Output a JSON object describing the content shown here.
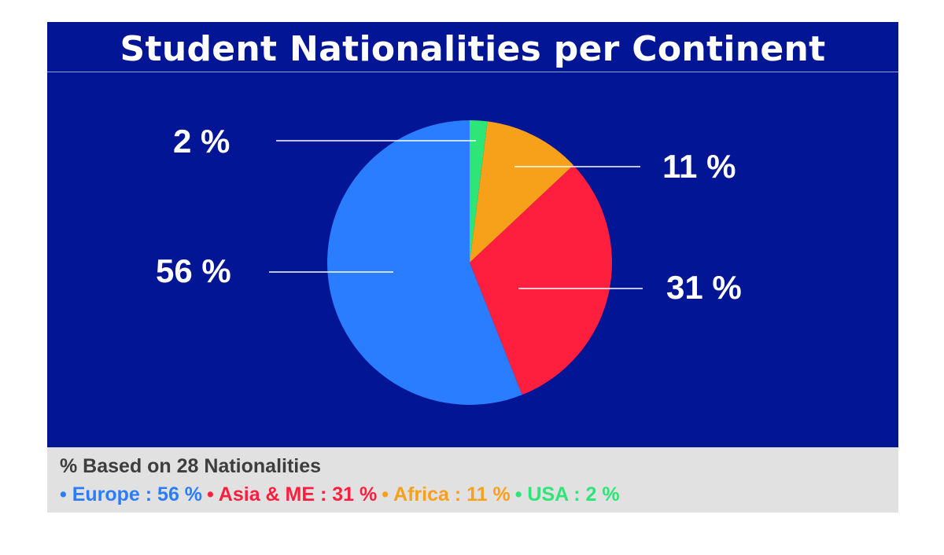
{
  "chart_data": {
    "type": "pie",
    "title": "Student Nationalities per Continent",
    "slices": [
      {
        "name": "USA",
        "value": 2,
        "label": "2 %",
        "color": "#2ee577"
      },
      {
        "name": "Africa",
        "value": 11,
        "label": "11 %",
        "color": "#f7a01a"
      },
      {
        "name": "Asia & ME",
        "value": 31,
        "label": "31 %",
        "color": "#fe1f3e"
      },
      {
        "name": "Europe",
        "value": 56,
        "label": "56 %",
        "color": "#2a7dfe"
      }
    ],
    "start_angle_deg": 0,
    "direction": "clockwise",
    "legend_position": "bottom"
  },
  "footer": {
    "note": "% Based on 28 Nationalities",
    "legend": [
      {
        "text": "• Europe : 56 %",
        "color": "#2a7dfe"
      },
      {
        "text": "• Asia & ME : 31 %",
        "color": "#fe1f3e"
      },
      {
        "text": "• Africa : 11 %",
        "color": "#f7a01a"
      },
      {
        "text": "• USA : 2 %",
        "color": "#2ee577"
      }
    ]
  },
  "colors": {
    "panel_background": "#021595",
    "footer_background": "#e1e1e1",
    "label_text": "#ffffff"
  }
}
